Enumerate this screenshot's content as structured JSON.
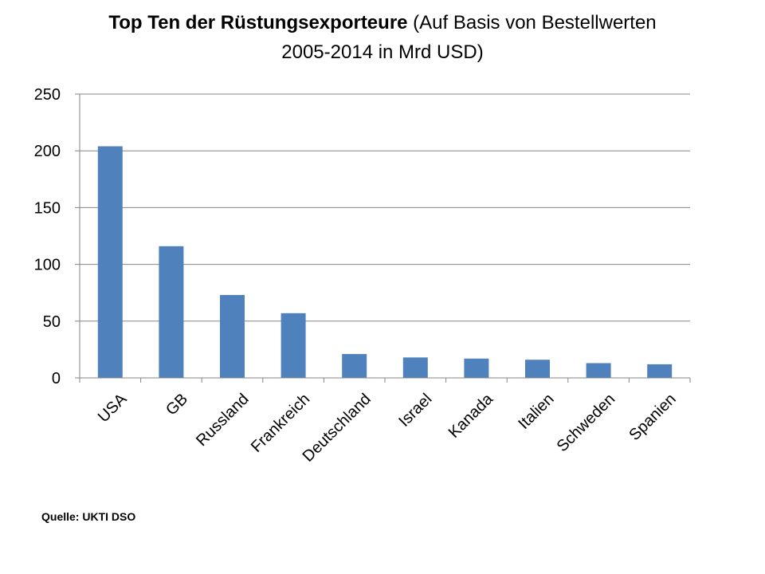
{
  "chart_data": {
    "type": "bar",
    "title_bold": "Top Ten der Rüstungsexporteure",
    "title_rest": " (Auf Basis von Bestellwerten",
    "title_line2": "2005-2014 in Mrd USD)",
    "categories": [
      "USA",
      "GB",
      "Russland",
      "Frankreich",
      "Deutschland",
      "Israel",
      "Kanada",
      "Italien",
      "Schweden",
      "Spanien"
    ],
    "values": [
      204,
      116,
      73,
      57,
      21,
      18,
      17,
      16,
      13,
      12
    ],
    "ylim": [
      0,
      250
    ],
    "yticks": [
      0,
      50,
      100,
      150,
      200,
      250
    ],
    "grid": true,
    "legend": "none",
    "bar_color": "#4f81bd",
    "source": "Quelle: UKTI DSO"
  }
}
